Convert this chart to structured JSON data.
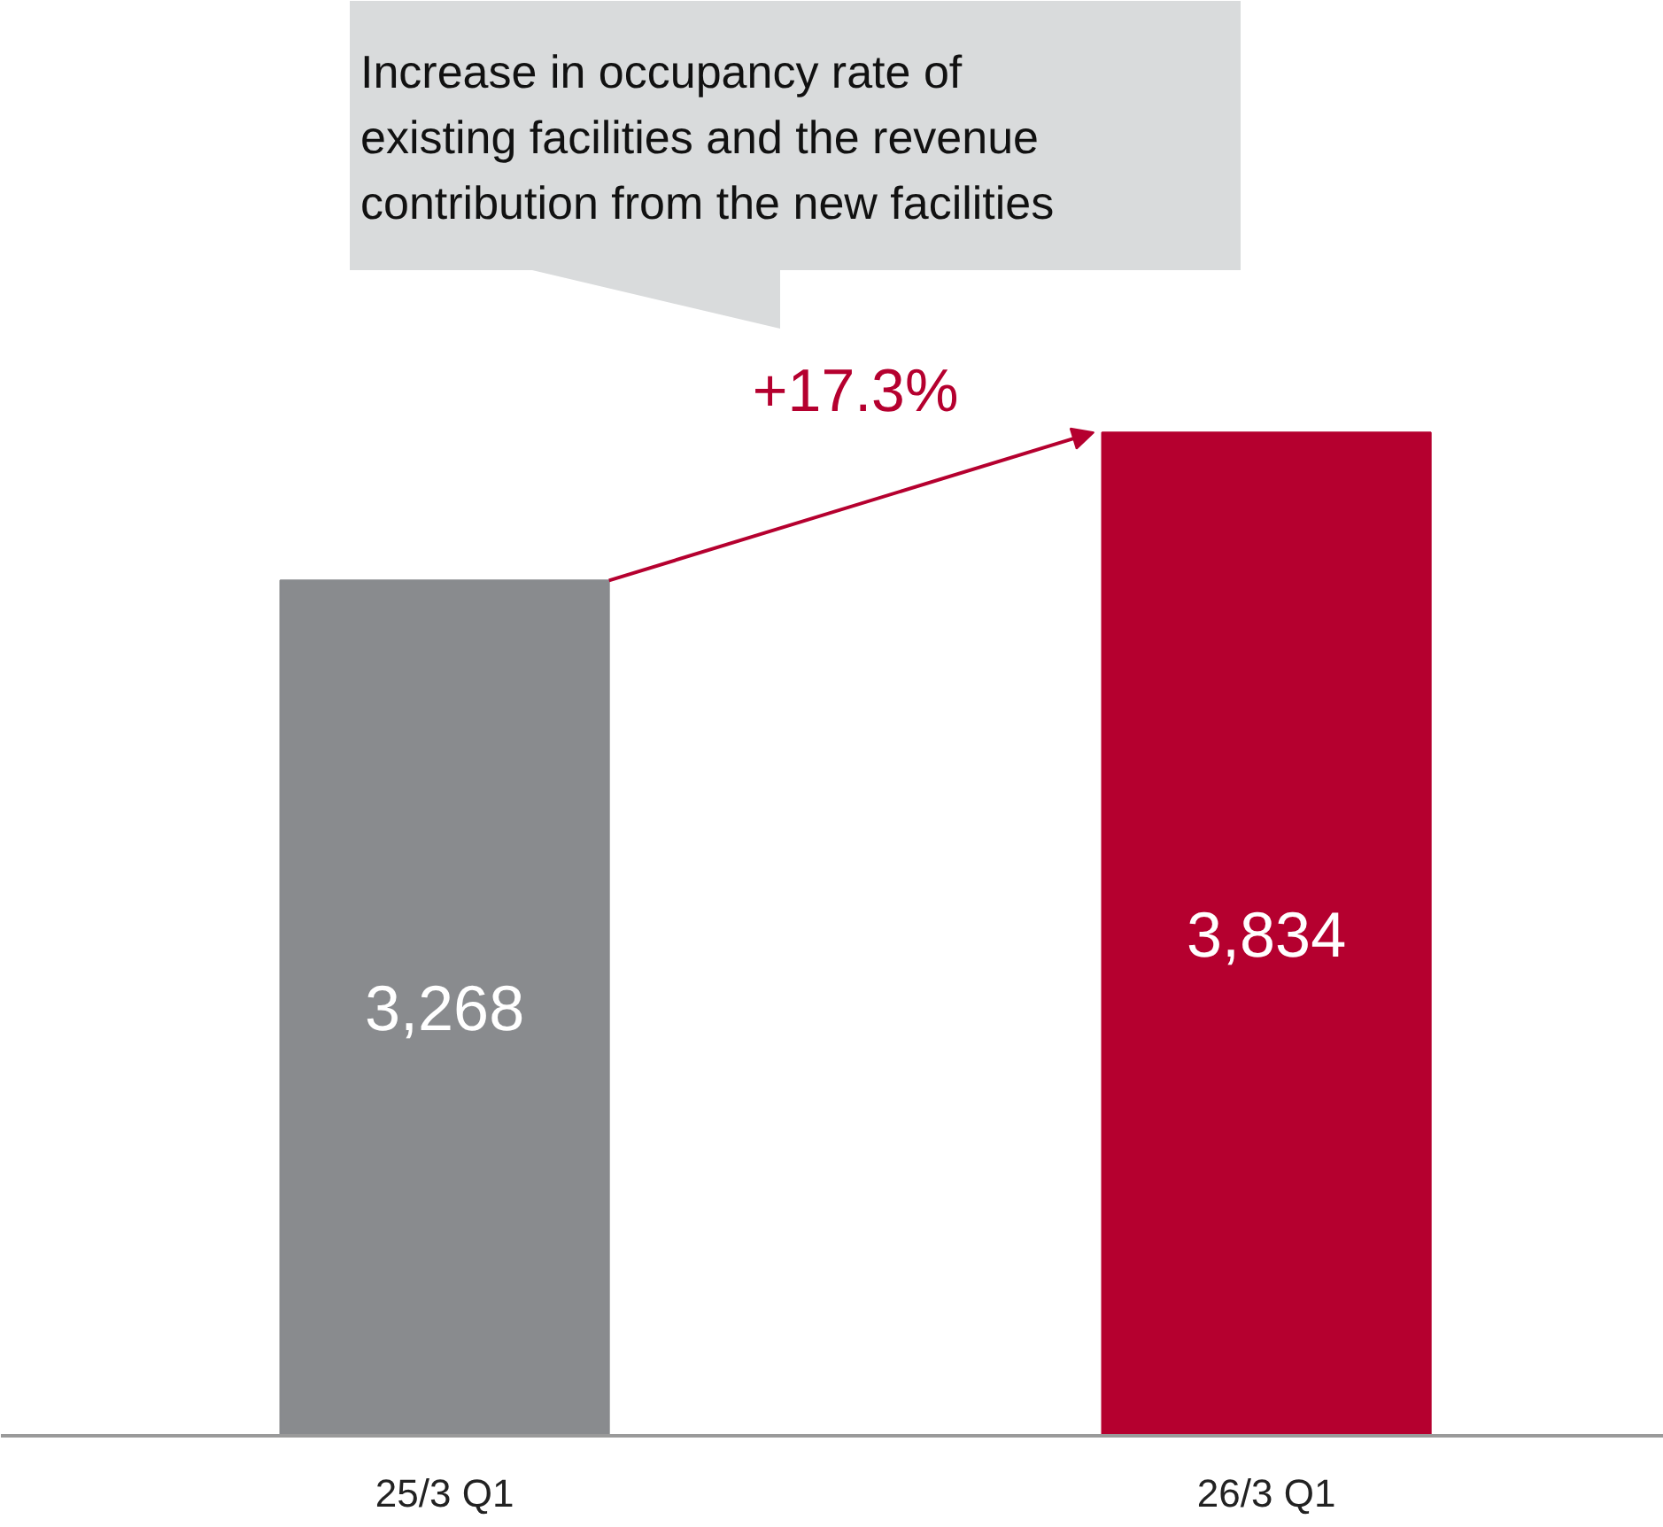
{
  "chart_data": {
    "type": "bar",
    "categories": [
      "25/3 Q1",
      "26/3 Q1"
    ],
    "values": [
      3268,
      3834
    ],
    "colors": [
      "#898b8e",
      "#b5002f"
    ],
    "value_labels": [
      "3,268",
      "3,834"
    ],
    "annotations": [
      "Increase in occupancy rate of\nexisting facilities and the revenue\ncontribution from the new facilities",
      "+17.3%"
    ],
    "grid": false
  }
}
